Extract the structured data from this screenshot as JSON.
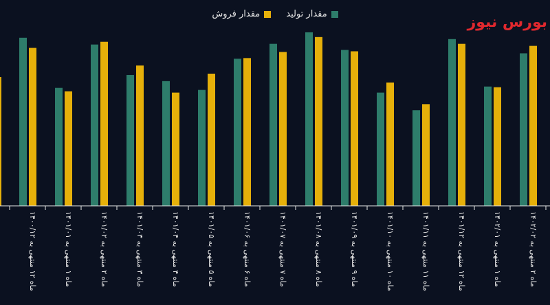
{
  "brand": {
    "text": "بورس نیوز",
    "color": "#e0282e"
  },
  "legend": {
    "sales_label": "مقدار فروش",
    "production_label": "مقدار تولید"
  },
  "colors": {
    "production": "#2e7d6b",
    "sales": "#e6b00a",
    "axis": "#e6e6e6",
    "background": "#0b1120"
  },
  "chart_data": {
    "type": "bar",
    "categories": [
      "ماه ۱۲ منتهی به ۱۴۰۰/۱۲",
      "ماه ۱ منتهی به ۱۴۰۱/۰۱",
      "ماه ۲ منتهی به ۱۴۰۱/۰۲",
      "ماه ۳ منتهی به ۱۴۰۱/۰۳",
      "ماه ۴ منتهی به ۱۴۰۱/۰۴",
      "ماه ۵ منتهی به ۱۴۰۱/۰۵",
      "ماه ۶ منتهی به ۱۴۰۱/۰۶",
      "ماه ۷ منتهی به ۱۴۰۱/۰۷",
      "ماه ۸ منتهی به ۱۴۰۱/۰۸",
      "ماه ۹ منتهی به ۱۴۰۱/۰۹",
      "ماه ۱۰ منتهی به ۱۴۰۱/۱۰",
      "ماه ۱۱ منتهی به ۱۴۰۱/۱۱",
      "ماه ۱۲ منتهی به ۱۴۰۱/۱۲",
      "ماه ۱ منتهی به ۱۴۰۲/۰۱",
      "ماه ۲ منتهی به ۱۴۰۲/۰۲"
    ],
    "series": [
      {
        "name": "مقدار تولید",
        "values": [
          248,
          174,
          238,
          193,
          184,
          171,
          217,
          239,
          256,
          230,
          167,
          141,
          246,
          176,
          225
        ]
      },
      {
        "name": "مقدار فروش",
        "values": [
          233,
          169,
          242,
          207,
          167,
          195,
          218,
          227,
          249,
          228,
          182,
          150,
          239,
          175,
          236
        ]
      }
    ],
    "ylim": [
      0,
      260
    ],
    "grid": false,
    "legend_position": "top-center"
  }
}
